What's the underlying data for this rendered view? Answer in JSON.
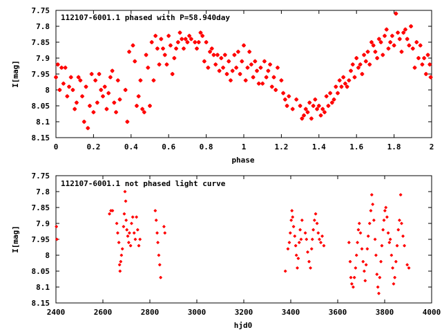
{
  "chart_data": [
    {
      "type": "scatter",
      "title": "112107-6001.1 phased with P=58.940day",
      "xlabel": "phase",
      "ylabel": "I[mag]",
      "xlim": [
        0,
        2
      ],
      "ylim": [
        7.75,
        8.15
      ],
      "y_inverted": true,
      "grid": false,
      "marker_color": "#ff0000",
      "x_ticks": [
        "0",
        "0.2",
        "0.4",
        "0.6",
        "0.8",
        "1",
        "1.2",
        "1.4",
        "1.6",
        "1.8",
        "2"
      ],
      "y_ticks": [
        "7.75",
        "7.8",
        "7.85",
        "7.9",
        "7.95",
        "8",
        "8.05",
        "8.1",
        "8.15"
      ],
      "points": [
        [
          0.0,
          7.96
        ],
        [
          0.01,
          7.92
        ],
        [
          0.02,
          8.0
        ],
        [
          0.03,
          7.93
        ],
        [
          0.04,
          7.98
        ],
        [
          0.05,
          7.93
        ],
        [
          0.06,
          8.02
        ],
        [
          0.07,
          7.99
        ],
        [
          0.08,
          7.96
        ],
        [
          0.09,
          8.0
        ],
        [
          0.1,
          8.06
        ],
        [
          0.11,
          8.04
        ],
        [
          0.12,
          7.96
        ],
        [
          0.13,
          7.97
        ],
        [
          0.14,
          8.02
        ],
        [
          0.15,
          8.1
        ],
        [
          0.16,
          7.99
        ],
        [
          0.17,
          8.12
        ],
        [
          0.18,
          8.05
        ],
        [
          0.19,
          7.95
        ],
        [
          0.2,
          8.07
        ],
        [
          0.21,
          7.97
        ],
        [
          0.22,
          8.04
        ],
        [
          0.23,
          7.95
        ],
        [
          0.24,
          8.0
        ],
        [
          0.25,
          8.02
        ],
        [
          0.26,
          7.99
        ],
        [
          0.27,
          8.06
        ],
        [
          0.28,
          8.01
        ],
        [
          0.29,
          7.96
        ],
        [
          0.3,
          7.94
        ],
        [
          0.31,
          8.04
        ],
        [
          0.32,
          8.07
        ],
        [
          0.33,
          7.97
        ],
        [
          0.34,
          8.03
        ],
        [
          0.37,
          8.0
        ],
        [
          0.38,
          8.1
        ],
        [
          0.39,
          7.88
        ],
        [
          0.41,
          7.86
        ],
        [
          0.42,
          7.91
        ],
        [
          0.43,
          8.05
        ],
        [
          0.44,
          8.02
        ],
        [
          0.45,
          7.97
        ],
        [
          0.46,
          8.06
        ],
        [
          0.47,
          8.07
        ],
        [
          0.48,
          7.89
        ],
        [
          0.49,
          7.93
        ],
        [
          0.5,
          8.05
        ],
        [
          0.51,
          7.85
        ],
        [
          0.52,
          7.97
        ],
        [
          0.53,
          7.83
        ],
        [
          0.54,
          7.87
        ],
        [
          0.55,
          7.92
        ],
        [
          0.56,
          7.84
        ],
        [
          0.57,
          7.87
        ],
        [
          0.58,
          7.89
        ],
        [
          0.59,
          7.92
        ],
        [
          0.6,
          7.83
        ],
        [
          0.61,
          7.86
        ],
        [
          0.62,
          7.95
        ],
        [
          0.63,
          7.9
        ],
        [
          0.64,
          7.87
        ],
        [
          0.65,
          7.85
        ],
        [
          0.66,
          7.82
        ],
        [
          0.67,
          7.84
        ],
        [
          0.68,
          7.87
        ],
        [
          0.69,
          7.84
        ],
        [
          0.7,
          7.85
        ],
        [
          0.71,
          7.83
        ],
        [
          0.72,
          7.84
        ],
        [
          0.74,
          7.85
        ],
        [
          0.75,
          7.87
        ],
        [
          0.76,
          7.85
        ],
        [
          0.77,
          7.82
        ],
        [
          0.78,
          7.83
        ],
        [
          0.79,
          7.91
        ],
        [
          0.8,
          7.85
        ],
        [
          0.81,
          7.93
        ],
        [
          0.82,
          7.88
        ],
        [
          0.83,
          7.87
        ],
        [
          0.84,
          7.89
        ],
        [
          0.85,
          7.92
        ],
        [
          0.86,
          7.89
        ],
        [
          0.87,
          7.94
        ],
        [
          0.88,
          7.9
        ],
        [
          0.89,
          7.93
        ],
        [
          0.9,
          7.89
        ],
        [
          0.91,
          7.95
        ],
        [
          0.92,
          7.91
        ],
        [
          0.93,
          7.97
        ],
        [
          0.94,
          7.94
        ],
        [
          0.95,
          7.89
        ],
        [
          0.96,
          7.93
        ],
        [
          0.97,
          7.88
        ],
        [
          0.98,
          7.95
        ],
        [
          0.99,
          7.91
        ],
        [
          1.0,
          7.86
        ],
        [
          1.01,
          7.97
        ],
        [
          1.02,
          7.93
        ],
        [
          1.03,
          7.88
        ],
        [
          1.04,
          7.92
        ],
        [
          1.05,
          7.96
        ],
        [
          1.06,
          7.91
        ],
        [
          1.07,
          7.94
        ],
        [
          1.08,
          7.98
        ],
        [
          1.09,
          7.93
        ],
        [
          1.1,
          7.98
        ],
        [
          1.11,
          7.91
        ],
        [
          1.12,
          7.96
        ],
        [
          1.13,
          7.94
        ],
        [
          1.14,
          7.92
        ],
        [
          1.15,
          7.99
        ],
        [
          1.16,
          7.96
        ],
        [
          1.17,
          8.0
        ],
        [
          1.18,
          7.93
        ],
        [
          1.2,
          7.97
        ],
        [
          1.21,
          8.01
        ],
        [
          1.22,
          8.03
        ],
        [
          1.23,
          8.05
        ],
        [
          1.24,
          8.02
        ],
        [
          1.26,
          8.06
        ],
        [
          1.28,
          8.03
        ],
        [
          1.3,
          8.05
        ],
        [
          1.31,
          8.09
        ],
        [
          1.32,
          8.08
        ],
        [
          1.33,
          8.06
        ],
        [
          1.34,
          8.07
        ],
        [
          1.35,
          8.04
        ],
        [
          1.36,
          8.09
        ],
        [
          1.37,
          8.05
        ],
        [
          1.38,
          8.03
        ],
        [
          1.39,
          8.06
        ],
        [
          1.4,
          8.05
        ],
        [
          1.41,
          8.08
        ],
        [
          1.42,
          8.06
        ],
        [
          1.43,
          8.07
        ],
        [
          1.44,
          8.02
        ],
        [
          1.45,
          8.05
        ],
        [
          1.46,
          8.01
        ],
        [
          1.47,
          8.04
        ],
        [
          1.48,
          8.03
        ],
        [
          1.49,
          7.99
        ],
        [
          1.5,
          8.01
        ],
        [
          1.51,
          7.97
        ],
        [
          1.52,
          7.99
        ],
        [
          1.53,
          7.96
        ],
        [
          1.54,
          7.98
        ],
        [
          1.55,
          7.99
        ],
        [
          1.56,
          7.97
        ],
        [
          1.57,
          7.94
        ],
        [
          1.58,
          7.92
        ],
        [
          1.59,
          7.96
        ],
        [
          1.6,
          7.9
        ],
        [
          1.61,
          7.93
        ],
        [
          1.62,
          7.92
        ],
        [
          1.63,
          7.95
        ],
        [
          1.64,
          7.89
        ],
        [
          1.65,
          7.91
        ],
        [
          1.66,
          7.88
        ],
        [
          1.67,
          7.92
        ],
        [
          1.68,
          7.85
        ],
        [
          1.69,
          7.86
        ],
        [
          1.7,
          7.88
        ],
        [
          1.71,
          7.9
        ],
        [
          1.72,
          7.84
        ],
        [
          1.73,
          7.85
        ],
        [
          1.74,
          7.89
        ],
        [
          1.75,
          7.83
        ],
        [
          1.76,
          7.81
        ],
        [
          1.77,
          7.87
        ],
        [
          1.78,
          7.85
        ],
        [
          1.79,
          7.83
        ],
        [
          1.8,
          7.86
        ],
        [
          1.81,
          7.76
        ],
        [
          1.82,
          7.82
        ],
        [
          1.83,
          7.84
        ],
        [
          1.84,
          7.88
        ],
        [
          1.85,
          7.82
        ],
        [
          1.86,
          7.81
        ],
        [
          1.87,
          7.84
        ],
        [
          1.88,
          7.86
        ],
        [
          1.89,
          7.8
        ],
        [
          1.9,
          7.87
        ],
        [
          1.91,
          7.93
        ],
        [
          1.92,
          7.85
        ],
        [
          1.93,
          7.9
        ],
        [
          1.94,
          7.86
        ],
        [
          1.95,
          7.92
        ],
        [
          1.96,
          7.9
        ],
        [
          1.97,
          7.95
        ],
        [
          1.98,
          7.89
        ],
        [
          1.99,
          7.92
        ],
        [
          1.995,
          7.96
        ]
      ]
    },
    {
      "type": "scatter",
      "title": "112107-6001.1 not phased light curve",
      "xlabel": "hjd0",
      "ylabel": "I[mag]",
      "xlim": [
        2400,
        4000
      ],
      "ylim": [
        7.75,
        8.15
      ],
      "y_inverted": true,
      "grid": false,
      "marker_color": "#ff0000",
      "x_ticks": [
        "2400",
        "2600",
        "2800",
        "3000",
        "3200",
        "3400",
        "3600",
        "3800",
        "4000"
      ],
      "y_ticks": [
        "7.75",
        "7.8",
        "7.85",
        "7.9",
        "7.95",
        "8",
        "8.05",
        "8.1",
        "8.15"
      ],
      "points": [
        [
          2402,
          7.91
        ],
        [
          2404,
          7.95
        ],
        [
          2628,
          7.87
        ],
        [
          2634,
          7.86
        ],
        [
          2641,
          7.86
        ],
        [
          2659,
          7.9
        ],
        [
          2663,
          7.93
        ],
        [
          2668,
          7.96
        ],
        [
          2671,
          8.03
        ],
        [
          2673,
          8.05
        ],
        [
          2676,
          8.02
        ],
        [
          2679,
          8.0
        ],
        [
          2683,
          7.98
        ],
        [
          2688,
          7.91
        ],
        [
          2691,
          7.87
        ],
        [
          2694,
          7.8
        ],
        [
          2697,
          7.83
        ],
        [
          2699,
          7.89
        ],
        [
          2702,
          7.92
        ],
        [
          2706,
          7.94
        ],
        [
          2710,
          7.96
        ],
        [
          2713,
          7.93
        ],
        [
          2718,
          7.97
        ],
        [
          2722,
          7.9
        ],
        [
          2727,
          7.88
        ],
        [
          2733,
          7.93
        ],
        [
          2738,
          7.95
        ],
        [
          2743,
          7.88
        ],
        [
          2748,
          7.92
        ],
        [
          2753,
          7.97
        ],
        [
          2758,
          7.95
        ],
        [
          2823,
          7.86
        ],
        [
          2827,
          7.89
        ],
        [
          2831,
          7.93
        ],
        [
          2834,
          7.96
        ],
        [
          2838,
          8.0
        ],
        [
          2842,
          8.03
        ],
        [
          2846,
          8.07
        ],
        [
          2860,
          7.91
        ],
        [
          2864,
          7.93
        ],
        [
          3377,
          8.05
        ],
        [
          3388,
          7.98
        ],
        [
          3394,
          7.96
        ],
        [
          3398,
          7.93
        ],
        [
          3402,
          7.89
        ],
        [
          3405,
          7.86
        ],
        [
          3408,
          7.88
        ],
        [
          3412,
          7.91
        ],
        [
          3417,
          7.94
        ],
        [
          3421,
          7.97
        ],
        [
          3424,
          8.0
        ],
        [
          3428,
          8.04
        ],
        [
          3432,
          8.01
        ],
        [
          3436,
          7.96
        ],
        [
          3440,
          7.92
        ],
        [
          3444,
          7.95
        ],
        [
          3448,
          7.89
        ],
        [
          3462,
          7.93
        ],
        [
          3467,
          7.95
        ],
        [
          3472,
          7.99
        ],
        [
          3478,
          8.02
        ],
        [
          3484,
          8.04
        ],
        [
          3489,
          7.98
        ],
        [
          3492,
          7.95
        ],
        [
          3496,
          7.92
        ],
        [
          3501,
          7.89
        ],
        [
          3506,
          7.87
        ],
        [
          3512,
          7.9
        ],
        [
          3517,
          7.93
        ],
        [
          3522,
          7.95
        ],
        [
          3528,
          7.96
        ],
        [
          3534,
          7.94
        ],
        [
          3541,
          7.97
        ],
        [
          3648,
          7.96
        ],
        [
          3653,
          8.02
        ],
        [
          3656,
          8.07
        ],
        [
          3660,
          8.09
        ],
        [
          3666,
          8.1
        ],
        [
          3671,
          8.07
        ],
        [
          3676,
          8.04
        ],
        [
          3680,
          8.0
        ],
        [
          3684,
          7.96
        ],
        [
          3688,
          7.92
        ],
        [
          3692,
          7.9
        ],
        [
          3697,
          7.93
        ],
        [
          3703,
          7.98
        ],
        [
          3708,
          8.02
        ],
        [
          3713,
          8.05
        ],
        [
          3717,
          8.08
        ],
        [
          3721,
          8.03
        ],
        [
          3726,
          7.98
        ],
        [
          3730,
          7.94
        ],
        [
          3736,
          7.9
        ],
        [
          3741,
          7.86
        ],
        [
          3745,
          7.81
        ],
        [
          3749,
          7.84
        ],
        [
          3754,
          7.89
        ],
        [
          3759,
          7.95
        ],
        [
          3763,
          8.0
        ],
        [
          3767,
          8.06
        ],
        [
          3771,
          8.1
        ],
        [
          3775,
          8.12
        ],
        [
          3779,
          8.07
        ],
        [
          3784,
          8.02
        ],
        [
          3788,
          7.97
        ],
        [
          3793,
          7.92
        ],
        [
          3797,
          7.89
        ],
        [
          3801,
          7.86
        ],
        [
          3805,
          7.85
        ],
        [
          3810,
          7.88
        ],
        [
          3815,
          7.93
        ],
        [
          3820,
          7.96
        ],
        [
          3824,
          7.95
        ],
        [
          3829,
          8.0
        ],
        [
          3834,
          8.04
        ],
        [
          3838,
          8.09
        ],
        [
          3843,
          8.07
        ],
        [
          3848,
          8.02
        ],
        [
          3853,
          7.97
        ],
        [
          3858,
          7.92
        ],
        [
          3863,
          7.89
        ],
        [
          3868,
          7.81
        ],
        [
          3872,
          7.9
        ],
        [
          3878,
          7.94
        ],
        [
          3884,
          7.97
        ],
        [
          3896,
          8.03
        ],
        [
          3903,
          8.04
        ]
      ]
    }
  ]
}
